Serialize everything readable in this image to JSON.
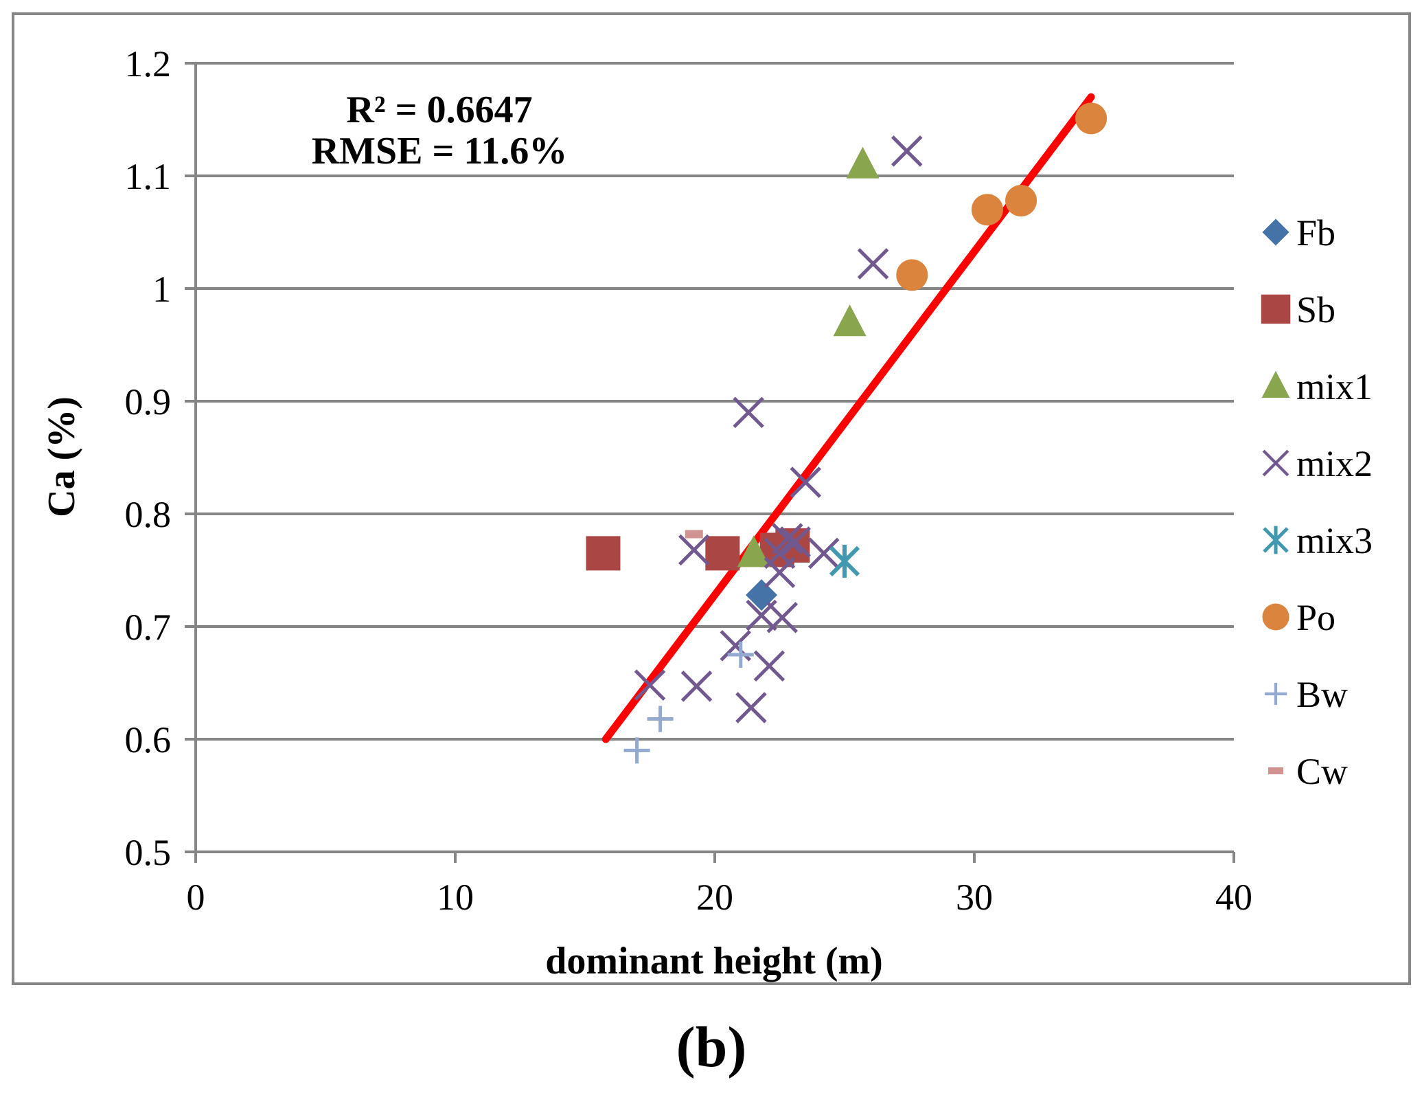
{
  "chart_data": {
    "type": "scatter",
    "title": "",
    "xlabel": "dominant height (m)",
    "ylabel": "Ca (%)",
    "xlim": [
      0,
      40
    ],
    "ylim": [
      0.5,
      1.2
    ],
    "xticks": [
      0,
      10,
      20,
      30,
      40
    ],
    "yticks": [
      0.5,
      0.6,
      0.7,
      0.8,
      0.9,
      1,
      1.1,
      1.2
    ],
    "xtick_labels": [
      "0",
      "10",
      "20",
      "30",
      "40"
    ],
    "ytick_labels": [
      "0.5",
      "0.6",
      "0.7",
      "0.8",
      "0.9",
      "1",
      "1.1",
      "1.2"
    ],
    "grid": "horizontal",
    "legend_position": "right",
    "annotations": [
      "R² = 0.6647",
      "RMSE = 11.6%"
    ],
    "caption": "(b)",
    "trendline": {
      "color": "#ff0000",
      "points": [
        [
          15.8,
          0.6
        ],
        [
          34.5,
          1.17
        ]
      ]
    },
    "series": [
      {
        "name": "Fb",
        "marker": "diamond",
        "color": "#4572a7",
        "points": [
          [
            21.8,
            0.728
          ]
        ]
      },
      {
        "name": "Sb",
        "marker": "square",
        "color": "#aa4643",
        "points": [
          [
            15.7,
            0.765
          ],
          [
            20.3,
            0.765
          ],
          [
            22.4,
            0.768
          ],
          [
            23.0,
            0.772
          ]
        ]
      },
      {
        "name": "mix1",
        "marker": "triangle",
        "color": "#89a54e",
        "points": [
          [
            25.7,
            1.11
          ],
          [
            25.2,
            0.97
          ],
          [
            21.5,
            0.765
          ]
        ]
      },
      {
        "name": "mix2",
        "marker": "x",
        "color": "#71588f",
        "points": [
          [
            27.4,
            1.122
          ],
          [
            26.1,
            1.022
          ],
          [
            21.3,
            0.89
          ],
          [
            23.5,
            0.828
          ],
          [
            22.8,
            0.778
          ],
          [
            23.1,
            0.775
          ],
          [
            19.2,
            0.768
          ],
          [
            24.2,
            0.765
          ],
          [
            22.5,
            0.765
          ],
          [
            22.5,
            0.748
          ],
          [
            21.8,
            0.71
          ],
          [
            22.6,
            0.708
          ],
          [
            20.8,
            0.683
          ],
          [
            22.1,
            0.665
          ],
          [
            17.5,
            0.648
          ],
          [
            19.3,
            0.647
          ],
          [
            21.4,
            0.628
          ]
        ]
      },
      {
        "name": "mix3",
        "marker": "asterisk",
        "color": "#4198af",
        "points": [
          [
            25.0,
            0.758
          ]
        ]
      },
      {
        "name": "Po",
        "marker": "circle",
        "color": "#db843d",
        "points": [
          [
            34.5,
            1.151
          ],
          [
            31.8,
            1.078
          ],
          [
            30.5,
            1.07
          ],
          [
            27.6,
            1.012
          ]
        ]
      },
      {
        "name": "Bw",
        "marker": "plus",
        "color": "#93a9cf",
        "points": [
          [
            21.0,
            0.675
          ],
          [
            17.9,
            0.618
          ],
          [
            17.0,
            0.59
          ]
        ]
      },
      {
        "name": "Cw",
        "marker": "dash",
        "color": "#d19392",
        "points": [
          [
            19.2,
            0.782
          ]
        ]
      }
    ]
  }
}
